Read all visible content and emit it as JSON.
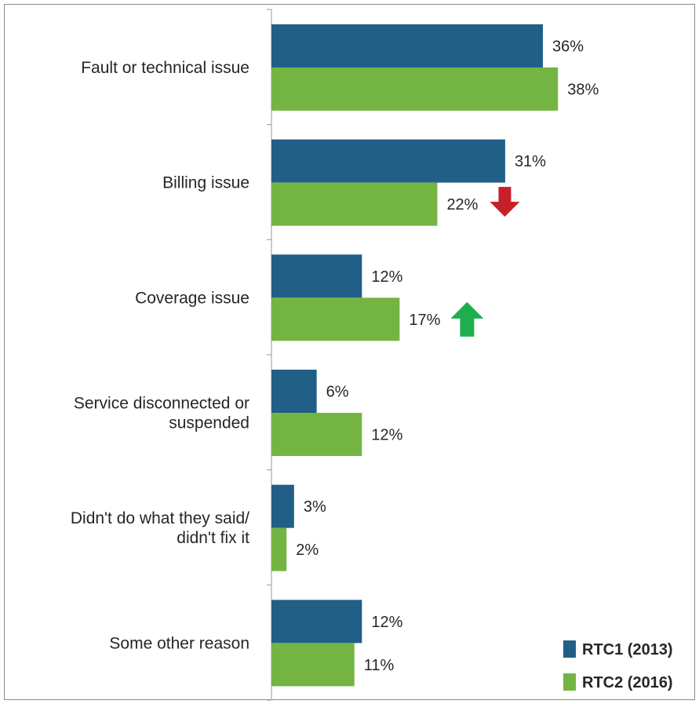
{
  "chart_data": {
    "type": "bar",
    "orientation": "horizontal",
    "categories": [
      [
        "Fault or technical issue"
      ],
      [
        "Billing issue"
      ],
      [
        "Coverage issue"
      ],
      [
        "Service disconnected or",
        "suspended"
      ],
      [
        "Didn't do what they said/",
        "didn't fix it"
      ],
      [
        "Some other reason"
      ]
    ],
    "series": [
      {
        "name": "RTC1 (2013)",
        "color": "#215f87",
        "values": [
          36,
          31,
          12,
          6,
          3,
          12
        ],
        "labels": [
          "36%",
          "31%",
          "12%",
          "6%",
          "3%",
          "12%"
        ]
      },
      {
        "name": "RTC2 (2016)",
        "color": "#74b443",
        "values": [
          38,
          22,
          17,
          12,
          2,
          11
        ],
        "labels": [
          "38%",
          "22%",
          "17%",
          "12%",
          "2%",
          "11%"
        ]
      }
    ],
    "xlim": [
      0,
      50
    ],
    "grid": false,
    "legend_position": "bottom-right",
    "annotations": [
      {
        "category_index": 1,
        "series_index": 1,
        "icon": "down-arrow-icon",
        "meaning": "decrease",
        "color": "#c8202a"
      },
      {
        "category_index": 2,
        "series_index": 1,
        "icon": "up-arrow-icon",
        "meaning": "increase",
        "color": "#1fae4f"
      }
    ]
  }
}
